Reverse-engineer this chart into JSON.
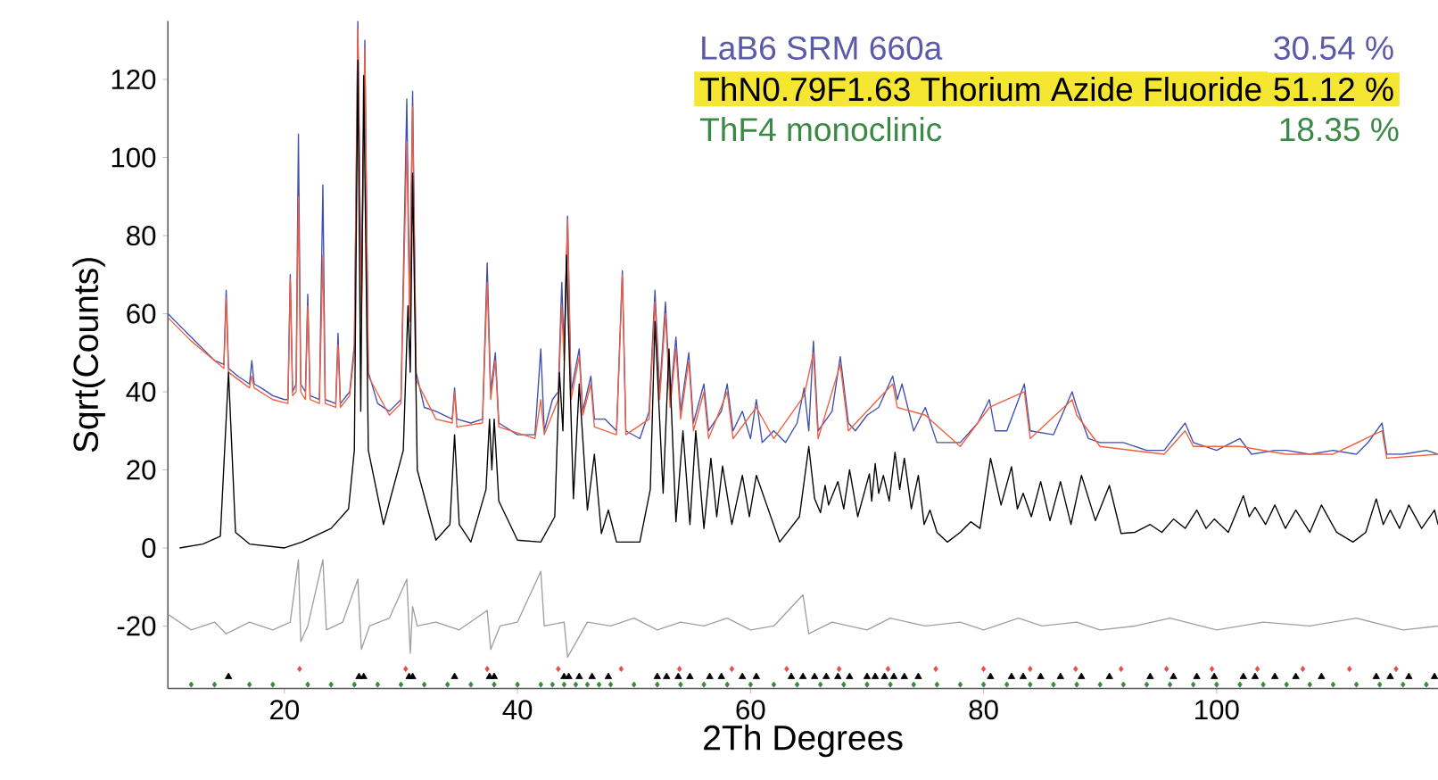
{
  "chart_data": {
    "type": "line",
    "xlabel": "2Th Degrees",
    "ylabel": "Sqrt(Counts)",
    "xlim": [
      10,
      119
    ],
    "ylim": [
      -36,
      135
    ],
    "xticks": [
      20,
      40,
      60,
      80,
      100
    ],
    "yticks": [
      -20,
      0,
      20,
      40,
      60,
      80,
      100,
      120
    ],
    "grid": false,
    "marker": "none",
    "line_style": "solid",
    "annotations": [
      "LaB6 SRM 660a",
      "30.54 %",
      "ThN0.79F1.63 Thorium Azide Fluoride",
      "51.12 %",
      "ThF4 monoclinic",
      "18.35 %"
    ],
    "series": [
      {
        "color": "#4050b0",
        "x": [
          10,
          11,
          12,
          13,
          14,
          14.8,
          15.0,
          15.2,
          16,
          17,
          17.2,
          17.4,
          18,
          19,
          20,
          20.3,
          20.5,
          20.7,
          21.0,
          21.2,
          21.4,
          21.8,
          22.0,
          22.2,
          23.0,
          23.3,
          23.5,
          24.4,
          24.6,
          24.8,
          25.6,
          26.0,
          26.3,
          26.6,
          26.9,
          27.2,
          28,
          29,
          30.0,
          30.5,
          30.75,
          31.0,
          31.3,
          32,
          33,
          34.4,
          34.6,
          34.8,
          36,
          37.0,
          37.4,
          37.7,
          38.1,
          38.4,
          40,
          41.5,
          42.0,
          42.3,
          43.0,
          43.5,
          43.8,
          44.0,
          44.3,
          44.6,
          45.3,
          45.6,
          46.3,
          46.6,
          47.5,
          48.5,
          49.0,
          49.3,
          50.5,
          51.3,
          51.8,
          52.2,
          52.7,
          53.1,
          53.6,
          54.0,
          54.7,
          55.1,
          56.0,
          56.4,
          57.5,
          58.0,
          58.5,
          59.3,
          60.0,
          60.5,
          61,
          62,
          63,
          64.0,
          64.6,
          65.0,
          65.4,
          65.8,
          67,
          67.7,
          68.4,
          69,
          70,
          71.0,
          72.2,
          72.6,
          73,
          74,
          75,
          76,
          78,
          79.5,
          80.5,
          81,
          82,
          83.5,
          84,
          86,
          87.6,
          88,
          89,
          90,
          92,
          94,
          95.5,
          97.3,
          98,
          100,
          102,
          103,
          105,
          106,
          108,
          110,
          112,
          113,
          114.2,
          114.6,
          116,
          118,
          119
        ],
        "values": [
          60,
          57,
          54,
          51,
          48,
          47,
          66,
          46,
          44,
          42,
          48,
          42,
          41,
          39,
          38,
          38,
          70,
          40,
          42,
          106,
          42,
          40,
          65,
          39,
          38,
          93,
          38,
          37,
          55,
          37,
          40,
          52,
          135,
          60,
          130,
          45,
          37,
          35,
          38,
          115,
          60,
          117,
          45,
          36,
          35,
          33,
          41,
          33,
          32,
          33,
          73,
          40,
          50,
          32,
          29,
          29,
          51,
          30,
          38,
          40,
          68,
          50,
          85,
          40,
          51,
          35,
          44,
          33,
          33,
          30,
          71,
          30,
          28,
          35,
          66,
          40,
          63,
          38,
          54,
          35,
          50,
          32,
          42,
          30,
          35,
          42,
          30,
          35,
          28,
          38,
          27,
          30,
          27,
          32,
          41,
          30,
          53,
          30,
          35,
          49,
          32,
          30,
          34,
          36,
          44,
          38,
          42,
          30,
          36,
          27,
          27,
          32,
          38,
          30,
          30,
          42,
          30,
          29,
          40,
          36,
          28,
          27,
          27,
          25,
          25,
          32,
          27,
          25,
          28,
          24,
          25,
          25,
          24,
          25,
          24,
          27,
          32,
          24,
          24,
          25,
          24
        ]
      },
      {
        "color": "#f06040",
        "x": [
          10,
          12,
          14,
          14.8,
          15.0,
          15.2,
          17,
          17.2,
          17.4,
          19,
          20.3,
          20.5,
          20.7,
          21.0,
          21.2,
          21.4,
          21.8,
          22.0,
          22.2,
          23.0,
          23.3,
          23.5,
          24.4,
          24.6,
          24.8,
          25.6,
          26.0,
          26.3,
          26.6,
          26.9,
          27.2,
          29,
          30.0,
          30.5,
          30.75,
          31.0,
          31.3,
          33,
          34.4,
          34.6,
          34.8,
          37.0,
          37.4,
          37.7,
          38.1,
          38.4,
          41.5,
          42.0,
          42.3,
          43.5,
          43.8,
          44.0,
          44.3,
          44.6,
          45.3,
          45.6,
          46.3,
          46.6,
          48.5,
          49.0,
          49.3,
          51.3,
          51.8,
          52.2,
          52.7,
          53.1,
          53.6,
          54.0,
          54.7,
          55.1,
          56.0,
          56.4,
          58.0,
          58.5,
          60.5,
          62,
          64.6,
          65.4,
          65.8,
          67.7,
          68.4,
          72.2,
          72.6,
          75,
          78,
          80.5,
          83.5,
          84,
          87.6,
          88,
          90,
          95.5,
          97.3,
          98,
          102,
          106,
          110,
          114.2,
          114.6,
          119
        ],
        "values": [
          59,
          53,
          48,
          46,
          64,
          45,
          41,
          44,
          41,
          38,
          37,
          69,
          39,
          40,
          90,
          40,
          38,
          62,
          38,
          37,
          75,
          37,
          36,
          52,
          36,
          39,
          50,
          133,
          58,
          128,
          44,
          34,
          37,
          104,
          58,
          113,
          43,
          33,
          32,
          40,
          31,
          32,
          68,
          38,
          48,
          31,
          28,
          38,
          29,
          38,
          62,
          48,
          84,
          38,
          49,
          34,
          42,
          31,
          29,
          70,
          29,
          33,
          63,
          38,
          60,
          36,
          51,
          33,
          48,
          30,
          40,
          28,
          40,
          28,
          36,
          28,
          39,
          50,
          28,
          47,
          30,
          42,
          36,
          34,
          26,
          36,
          40,
          28,
          38,
          34,
          26,
          24,
          30,
          26,
          26,
          24,
          24,
          30,
          23,
          24
        ]
      },
      {
        "color": "#000000",
        "x": [
          11,
          13,
          14.5,
          15.2,
          15.8,
          17,
          20,
          21.5,
          24,
          25.5,
          26.0,
          26.3,
          26.55,
          26.8,
          27.2,
          28.5,
          30.2,
          30.6,
          30.8,
          31.0,
          31.4,
          33,
          34.2,
          34.6,
          35,
          36,
          37.3,
          37.6,
          37.8,
          38.0,
          38.4,
          40,
          42,
          43.2,
          43.6,
          43.9,
          44.2,
          44.8,
          45.3,
          46,
          46.6,
          47.2,
          47.8,
          48.5,
          50.5,
          51.4,
          51.8,
          52.5,
          53.0,
          53.6,
          54.2,
          54.8,
          55.3,
          56,
          56.6,
          57.1,
          57.6,
          58.4,
          59.3,
          59.9,
          60.5,
          62.5,
          64.2,
          65.0,
          65.5,
          66,
          66.4,
          66.7,
          67.1,
          67.5,
          68,
          68.5,
          69.2,
          70.2,
          70.4,
          70.7,
          71.0,
          71.4,
          71.9,
          72.4,
          72.8,
          73.2,
          73.8,
          74.4,
          74.9,
          75.4,
          76,
          76.9,
          78,
          78.9,
          79.7,
          80.6,
          81.5,
          82.4,
          82.9,
          83.4,
          84.1,
          84.9,
          85.7,
          86.6,
          87.5,
          88.4,
          89.6,
          90.8,
          91.8,
          93,
          94.3,
          95.3,
          96.3,
          97.3,
          98.3,
          99.1,
          99.8,
          101,
          102.3,
          102.8,
          103.3,
          104.2,
          105,
          105.9,
          106.8,
          108,
          109,
          110.3,
          111.7,
          112.8,
          113.7,
          114.3,
          114.9,
          115.7,
          116.5,
          117.6,
          118.7,
          119
        ],
        "values": [
          0,
          1,
          3,
          45,
          4,
          1,
          0,
          1.5,
          5,
          10,
          25,
          125,
          35,
          121,
          25,
          6,
          25,
          62,
          45,
          96,
          20,
          2,
          6,
          29,
          6,
          1.5,
          15,
          33,
          20,
          33,
          12,
          2,
          1.5,
          8,
          45,
          30,
          75,
          12.6,
          42,
          9.7,
          24,
          3.7,
          9.7,
          1.5,
          1.5,
          15,
          58,
          14,
          51,
          6.7,
          30,
          6,
          30,
          5,
          23,
          8,
          21,
          6,
          18.6,
          8,
          18.6,
          1.5,
          8,
          26,
          12.6,
          9,
          16,
          11,
          14,
          17,
          10,
          20,
          8,
          19,
          12,
          21.6,
          14,
          18.6,
          12,
          24.5,
          15,
          23,
          10,
          18.6,
          6,
          9.7,
          4,
          1.5,
          4,
          6.7,
          5,
          23,
          11,
          20.8,
          10,
          14,
          8,
          17,
          7,
          17,
          6,
          18.6,
          7,
          16,
          3.7,
          4,
          6,
          4,
          7.4,
          5,
          9.7,
          5,
          7.4,
          4,
          13.4,
          8,
          10.4,
          6,
          11,
          5,
          9.7,
          4,
          11,
          4,
          1.5,
          4,
          12.6,
          6,
          9.7,
          5,
          11,
          5,
          9.7,
          6
        ]
      },
      {
        "color": "#a0a0a0",
        "x": [
          10,
          12,
          14,
          15,
          17,
          19,
          20.5,
          21.2,
          21.4,
          22,
          23.3,
          23.6,
          25,
          26.3,
          26.6,
          27.3,
          29,
          30.5,
          30.8,
          31.0,
          31.4,
          33,
          35,
          37.4,
          37.7,
          38.5,
          40,
          42.0,
          42.3,
          44,
          44.3,
          46,
          48,
          50,
          52,
          54,
          56,
          58,
          60,
          62,
          64.5,
          65,
          67,
          70,
          72,
          75,
          78,
          80,
          83,
          85,
          88,
          90,
          93,
          96,
          100,
          104,
          108,
          112,
          116,
          119
        ],
        "values": [
          -17,
          -21,
          -19,
          -22,
          -19,
          -21,
          -19,
          -3,
          -24,
          -20,
          -3,
          -21,
          -19,
          -8,
          -26,
          -20,
          -18,
          -8,
          -27,
          -15,
          -20,
          -19,
          -21,
          -16,
          -26,
          -20,
          -19,
          -6,
          -20,
          -19,
          -28,
          -19,
          -20,
          -18,
          -21,
          -19,
          -20,
          -18,
          -21,
          -20,
          -12,
          -22,
          -19,
          -21,
          -18,
          -20,
          -19,
          -21,
          -18,
          -20,
          -19,
          -21,
          -20,
          -18,
          -21,
          -19,
          -20,
          -18,
          -21,
          -20
        ]
      },
      {
        "type": "scatter",
        "marker": "triangle",
        "color": "#000000",
        "x": [
          15.2,
          26.4,
          26.8,
          30.7,
          31.0,
          34.6,
          37.6,
          38.0,
          44.0,
          44.4,
          45.3,
          46.4,
          47.8,
          52.0,
          52.8,
          53.8,
          54.8,
          56.5,
          57.5,
          59.3,
          60.5,
          63.5,
          64.5,
          65.5,
          66.5,
          67.5,
          68.5,
          70,
          70.7,
          71.5,
          72.3,
          73.2,
          74.4,
          80.6,
          82.4,
          83.4,
          84.9,
          86.6,
          88.4,
          90.8,
          94.3,
          96.3,
          98.3,
          99.8,
          102.3,
          103.3,
          105,
          106.8,
          109,
          113.7,
          114.9,
          116.5,
          118.7
        ],
        "values": [
          -33,
          -33,
          -33,
          -33,
          -33,
          -33,
          -33,
          -33,
          -33,
          -33,
          -33,
          -33,
          -33,
          -33,
          -33,
          -33,
          -33,
          -33,
          -33,
          -33,
          -33,
          -33,
          -33,
          -33,
          -33,
          -33,
          -33,
          -33,
          -33,
          -33,
          -33,
          -33,
          -33,
          -33,
          -33,
          -33,
          -33,
          -33,
          -33,
          -33,
          -33,
          -33,
          -33,
          -33,
          -33,
          -33,
          -33,
          -33,
          -33,
          -33,
          -33,
          -33,
          -33
        ]
      },
      {
        "type": "scatter",
        "marker": "diamond",
        "color": "#e05050",
        "x": [
          21.3,
          30.4,
          37.4,
          43.5,
          48.9,
          53.9,
          58.4,
          63.1,
          67.6,
          71.8,
          75.9,
          80.0,
          84.0,
          87.9,
          91.8,
          95.7,
          99.6,
          103.5,
          107.4,
          111.4,
          115.4
        ],
        "values": [
          -31,
          -31,
          -31,
          -31,
          -31,
          -31,
          -31,
          -31,
          -31,
          -31,
          -31,
          -31,
          -31,
          -31,
          -31,
          -31,
          -31,
          -31,
          -31,
          -31,
          -31
        ]
      },
      {
        "type": "scatter",
        "marker": "diamond",
        "color": "#3a8a3a",
        "x": [
          12,
          14,
          17,
          19,
          22,
          24,
          26,
          28,
          30,
          32,
          34,
          36,
          38,
          40,
          42,
          43,
          44,
          45,
          46,
          47,
          48,
          50,
          52,
          54,
          56,
          58,
          60,
          62,
          64,
          66,
          68,
          70,
          72,
          74,
          76,
          78,
          80,
          82,
          84,
          86,
          88,
          90,
          92,
          94,
          96,
          98,
          100,
          102,
          104,
          106,
          108,
          110,
          112,
          114,
          116,
          118
        ],
        "values": [
          -35,
          -35,
          -35,
          -35,
          -35,
          -35,
          -35,
          -35,
          -35,
          -35,
          -35,
          -35,
          -35,
          -35,
          -35,
          -35,
          -35,
          -35,
          -35,
          -35,
          -35,
          -35,
          -35,
          -35,
          -35,
          -35,
          -35,
          -35,
          -35,
          -35,
          -35,
          -35,
          -35,
          -35,
          -35,
          -35,
          -35,
          -35,
          -35,
          -35,
          -35,
          -35,
          -35,
          -35,
          -35,
          -35,
          -35,
          -35,
          -35,
          -35,
          -35,
          -35,
          -35,
          -35,
          -35,
          -35
        ]
      }
    ]
  }
}
